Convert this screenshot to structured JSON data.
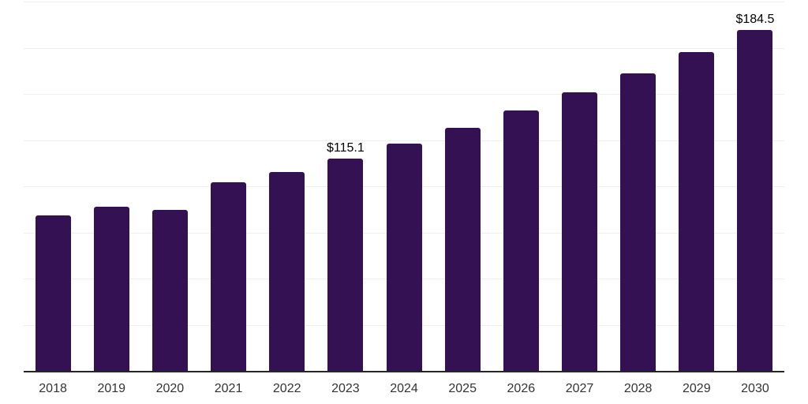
{
  "chart_data": {
    "type": "bar",
    "title": "",
    "xlabel": "",
    "ylabel": "",
    "categories": [
      "2018",
      "2019",
      "2020",
      "2021",
      "2022",
      "2023",
      "2024",
      "2025",
      "2026",
      "2027",
      "2028",
      "2029",
      "2030"
    ],
    "values": [
      84.1,
      89.1,
      87.1,
      102.0,
      107.8,
      115.1,
      123.1,
      131.7,
      140.9,
      150.7,
      161.2,
      172.5,
      184.5
    ],
    "value_labels": [
      "",
      "",
      "",
      "",
      "",
      "$115.1",
      "",
      "",
      "",
      "",
      "",
      "",
      "$184.5"
    ],
    "ylim": [
      0,
      200
    ],
    "gridline_step": 25,
    "grid": true,
    "y_axis_labels_visible": false,
    "legend_position": "none",
    "colors": {
      "bar": "#341152",
      "axis": "#262626",
      "gridline": "#efefef",
      "tick_label": "#333333",
      "value_label": "#000000"
    }
  }
}
